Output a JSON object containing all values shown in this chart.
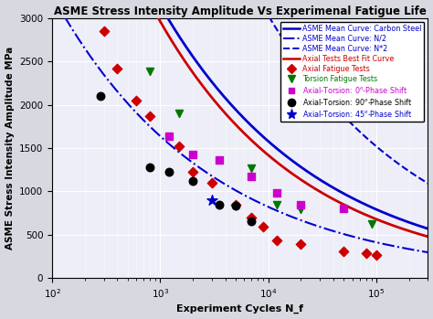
{
  "title": "ASME Stress Intensity Amplitude Vs Experimenal Fatigue Life",
  "xlabel": "Experiment Cycles N_f",
  "ylabel": "ASME Stress Intensity Amplitude MPa",
  "xlim": [
    100,
    300000
  ],
  "ylim": [
    0,
    3000
  ],
  "yticks": [
    0,
    500,
    1000,
    1500,
    2000,
    2500,
    3000
  ],
  "asme_carbon_A": 25000,
  "asme_carbon_b": -0.3,
  "asme_n2_A": 13000,
  "asme_n2_b": -0.3,
  "asme_2n_A": 48000,
  "asme_2n_b": -0.3,
  "bestfit_A": 27000,
  "bestfit_b": -0.32,
  "axial_x": [
    300,
    400,
    600,
    800,
    1500,
    2000,
    3000,
    5000,
    7000,
    9000,
    12000,
    20000,
    50000,
    80000,
    100000
  ],
  "axial_y": [
    2850,
    2420,
    2050,
    1870,
    1520,
    1230,
    1100,
    850,
    700,
    595,
    430,
    390,
    310,
    290,
    265
  ],
  "torsion_x": [
    800,
    1500,
    7000,
    12000,
    20000,
    90000
  ],
  "torsion_y": [
    2380,
    1900,
    1270,
    840,
    790,
    620
  ],
  "axial_torsion_0_x": [
    1200,
    2000,
    3500,
    7000,
    12000,
    20000,
    50000
  ],
  "axial_torsion_0_y": [
    1640,
    1420,
    1360,
    1170,
    980,
    840,
    800
  ],
  "axial_torsion_90_x": [
    280,
    800,
    1200,
    2000,
    3500,
    5000,
    7000
  ],
  "axial_torsion_90_y": [
    2100,
    1280,
    1220,
    1120,
    840,
    830,
    660
  ],
  "axial_torsion_45_x": [
    3000
  ],
  "axial_torsion_45_y": [
    900
  ],
  "color_blue": "#0000CC",
  "color_red": "#CC0000",
  "color_green": "#007700",
  "color_magenta": "#CC00CC",
  "color_black": "#000000",
  "bg_color": "#EEEEF8",
  "fig_bg_color": "#D8D8E0"
}
